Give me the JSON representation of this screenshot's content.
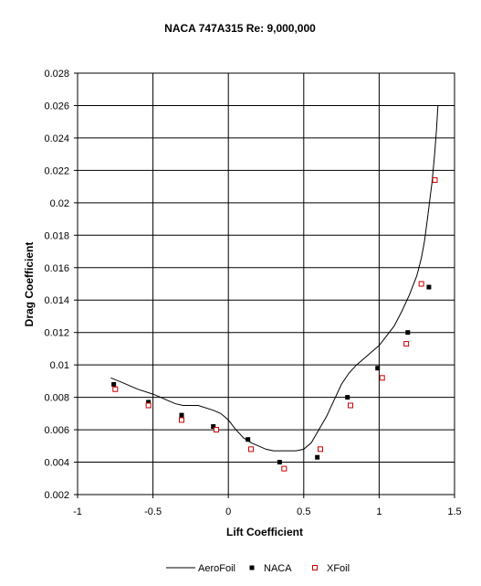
{
  "chart_data": {
    "type": "scatter",
    "title": "NACA 747A315 Re: 9,000,000",
    "xlabel": "Lift Coefficient",
    "ylabel": "Drag Coefficient",
    "xlim": [
      -1,
      1.5
    ],
    "ylim": [
      0.002,
      0.028
    ],
    "x_ticks": [
      -1,
      -0.5,
      0,
      0.5,
      1,
      1.5
    ],
    "x_tick_labels": [
      "-1",
      "-0.5",
      "0",
      "0.5",
      "1",
      "1.5"
    ],
    "y_ticks": [
      0.002,
      0.004,
      0.006,
      0.008,
      0.01,
      0.012,
      0.014,
      0.016,
      0.018,
      0.02,
      0.022,
      0.024,
      0.026,
      0.028
    ],
    "y_tick_labels": [
      "0.002",
      "0.004",
      "0.006",
      "0.008",
      "0.01",
      "0.012",
      "0.014",
      "0.016",
      "0.018",
      "0.02",
      "0.022",
      "0.024",
      "0.026",
      "0.028"
    ],
    "grid": true,
    "legend_placement": "bottom",
    "series": [
      {
        "name": "AeroFoil",
        "style": "line",
        "color": "#000000",
        "x": [
          -0.78,
          -0.7,
          -0.6,
          -0.5,
          -0.45,
          -0.4,
          -0.35,
          -0.3,
          -0.2,
          -0.1,
          -0.05,
          0.0,
          0.05,
          0.1,
          0.15,
          0.2,
          0.25,
          0.3,
          0.35,
          0.4,
          0.45,
          0.5,
          0.55,
          0.6,
          0.65,
          0.7,
          0.75,
          0.8,
          0.85,
          0.9,
          0.95,
          1.0,
          1.05,
          1.1,
          1.15,
          1.2,
          1.25,
          1.28,
          1.3,
          1.32,
          1.34,
          1.35,
          1.36,
          1.37,
          1.38,
          1.39
        ],
        "y": [
          0.0092,
          0.0089,
          0.0085,
          0.0082,
          0.008,
          0.0078,
          0.0076,
          0.0075,
          0.0075,
          0.0072,
          0.007,
          0.0066,
          0.006,
          0.0055,
          0.0052,
          0.005,
          0.0048,
          0.0047,
          0.0047,
          0.0047,
          0.0047,
          0.0048,
          0.0052,
          0.006,
          0.0068,
          0.0078,
          0.0088,
          0.0095,
          0.01,
          0.0104,
          0.0108,
          0.0112,
          0.0118,
          0.0124,
          0.0133,
          0.0143,
          0.0155,
          0.0166,
          0.0176,
          0.019,
          0.0205,
          0.0212,
          0.0222,
          0.0232,
          0.0245,
          0.026
        ]
      },
      {
        "name": "NACA",
        "style": "marker-filled-square",
        "color": "#000000",
        "x": [
          -0.76,
          -0.53,
          -0.31,
          -0.1,
          0.13,
          0.34,
          0.59,
          0.79,
          0.99,
          1.19,
          1.33
        ],
        "y": [
          0.0088,
          0.0077,
          0.0069,
          0.0062,
          0.0054,
          0.004,
          0.0043,
          0.008,
          0.0098,
          0.012,
          0.0148
        ]
      },
      {
        "name": "XFoil",
        "style": "marker-open-square",
        "color": "#cc0000",
        "x": [
          -0.75,
          -0.53,
          -0.31,
          -0.08,
          0.15,
          0.37,
          0.61,
          0.81,
          1.02,
          1.18,
          1.28,
          1.37
        ],
        "y": [
          0.0085,
          0.0075,
          0.0066,
          0.006,
          0.0048,
          0.0036,
          0.0048,
          0.0075,
          0.0092,
          0.0113,
          0.015,
          0.0214
        ]
      }
    ]
  }
}
